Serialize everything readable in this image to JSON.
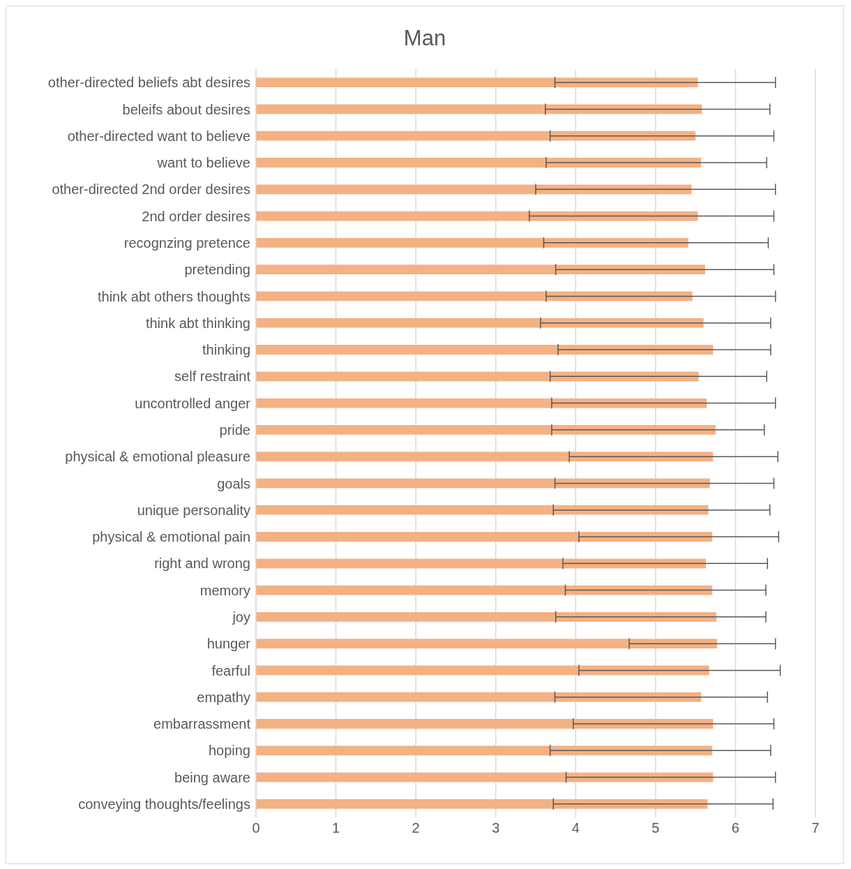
{
  "chart_data": {
    "type": "bar",
    "orientation": "horizontal",
    "title": "Man",
    "categories": [
      "other-directed beliefs abt desires",
      "beleifs about desires",
      "other-directed want to believe",
      "want to believe",
      "other-directed 2nd order desires",
      "2nd order desires",
      "recognzing pretence",
      "pretending",
      "think abt others thoughts",
      "think abt thinking",
      "thinking",
      "self restraint",
      "uncontrolled anger",
      "pride",
      "physical & emotional pleasure",
      "goals",
      "unique personality",
      "physical & emotional pain",
      "right and wrong",
      "memory",
      "joy",
      "hunger",
      "fearful",
      "empathy",
      "embarrassment",
      "hoping",
      "being aware",
      "conveying thoughts/feelings"
    ],
    "values": [
      5.53,
      5.58,
      5.5,
      5.57,
      5.45,
      5.53,
      5.41,
      5.62,
      5.46,
      5.6,
      5.72,
      5.54,
      5.64,
      5.75,
      5.72,
      5.68,
      5.66,
      5.71,
      5.63,
      5.71,
      5.76,
      5.77,
      5.67,
      5.57,
      5.72,
      5.71,
      5.72,
      5.65
    ],
    "errors": [
      [
        3.74,
        6.5
      ],
      [
        3.62,
        6.43
      ],
      [
        3.68,
        6.48
      ],
      [
        3.63,
        6.39
      ],
      [
        3.5,
        6.5
      ],
      [
        3.42,
        6.48
      ],
      [
        3.6,
        6.41
      ],
      [
        3.75,
        6.48
      ],
      [
        3.63,
        6.5
      ],
      [
        3.56,
        6.44
      ],
      [
        3.78,
        6.44
      ],
      [
        3.68,
        6.39
      ],
      [
        3.7,
        6.5
      ],
      [
        3.7,
        6.36
      ],
      [
        3.92,
        6.53
      ],
      [
        3.74,
        6.48
      ],
      [
        3.72,
        6.43
      ],
      [
        4.04,
        6.54
      ],
      [
        3.84,
        6.4
      ],
      [
        3.87,
        6.38
      ],
      [
        3.75,
        6.38
      ],
      [
        4.67,
        6.5
      ],
      [
        4.04,
        6.56
      ],
      [
        3.74,
        6.4
      ],
      [
        3.97,
        6.48
      ],
      [
        3.68,
        6.44
      ],
      [
        3.88,
        6.5
      ],
      [
        3.72,
        6.47
      ]
    ],
    "color": "#f4b183",
    "xlim": [
      0,
      7
    ],
    "xticks": [
      0,
      1,
      2,
      3,
      4,
      5,
      6,
      7
    ],
    "grid": "x"
  }
}
